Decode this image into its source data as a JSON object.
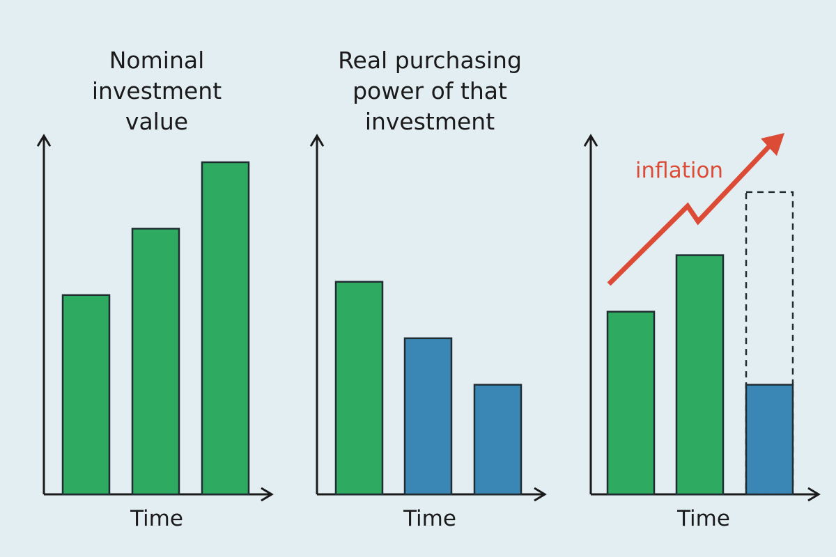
{
  "colors": {
    "background": "#e3eef3",
    "axis": "#1a1a1a",
    "nominal_bar": "#2eaa61",
    "real_bar": "#3a86b4",
    "bar_outline": "#1f2d33",
    "inflation_arrow": "#dc4b36",
    "text": "#1a1a1a"
  },
  "chart_data": [
    {
      "type": "bar",
      "title": "Nominal investment value",
      "title_lines": [
        "Nominal",
        "investment",
        "value"
      ],
      "xlabel": "Time",
      "ylabel": "",
      "categories": [
        "",
        "",
        ""
      ],
      "series": [
        {
          "kind": "nominal",
          "values": [
            3.0,
            4.0,
            5.0
          ]
        }
      ],
      "ylim": [
        0,
        5
      ],
      "grid": false
    },
    {
      "type": "bar",
      "title": "Real purchasing power of that investment",
      "title_lines": [
        "Real purchasing",
        "power of that",
        "investment"
      ],
      "xlabel": "Time",
      "ylabel": "",
      "categories": [
        "",
        "",
        ""
      ],
      "series": [
        {
          "kind": "mixed",
          "values": [
            3.2,
            2.35,
            1.65
          ],
          "bar_kinds": [
            "nominal",
            "real",
            "real"
          ]
        }
      ],
      "ylim": [
        0,
        5
      ],
      "grid": false
    },
    {
      "type": "bar",
      "title": "",
      "title_lines": [],
      "xlabel": "Time",
      "ylabel": "",
      "categories": [
        "",
        "",
        ""
      ],
      "series": [
        {
          "kind": "mixed",
          "values": [
            2.75,
            3.6,
            1.65
          ],
          "bar_kinds": [
            "nominal",
            "nominal",
            "real"
          ]
        }
      ],
      "dashed_outline": {
        "bar_index": 2,
        "value": 4.55
      },
      "annotation": {
        "text": "inflation",
        "direction": "rising"
      },
      "ylim": [
        0,
        5
      ],
      "grid": false
    }
  ]
}
